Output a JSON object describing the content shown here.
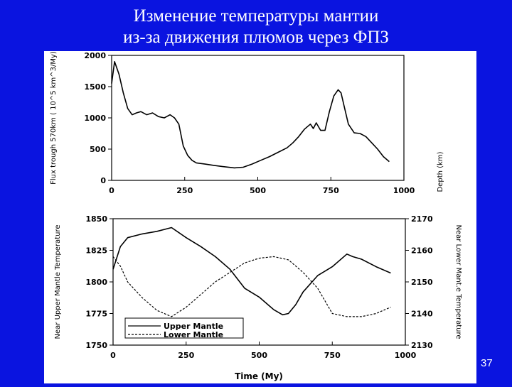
{
  "slide": {
    "title_line1": "Изменение температуры мантии",
    "title_line2": "из-за движения плюмов через ФПЗ",
    "number": "37"
  },
  "colors": {
    "background": "#0a14e0",
    "panel": "#ffffff",
    "ink": "#000000"
  },
  "chart_data": [
    {
      "type": "line",
      "ylabel": "Flux trough 570km ( 10^5 km^3/My)",
      "y2label": "Depth (km)",
      "xlim": [
        0,
        1000
      ],
      "ylim": [
        0,
        2000
      ],
      "xticks": [
        "0",
        "250",
        "500",
        "750",
        "1000"
      ],
      "yticks": [
        "0",
        "500",
        "1000",
        "1500",
        "2000"
      ],
      "series": [
        {
          "x": [
            0,
            10,
            25,
            40,
            55,
            70,
            85,
            100,
            120,
            140,
            160,
            180,
            200,
            215,
            230,
            245,
            260,
            275,
            290,
            320,
            350,
            380,
            420,
            450,
            480,
            510,
            540,
            570,
            600,
            620,
            640,
            660,
            680,
            690,
            700,
            715,
            730,
            745,
            760,
            775,
            785,
            795,
            810,
            830,
            850,
            870,
            890,
            910,
            930,
            950
          ],
          "values": [
            1550,
            1900,
            1700,
            1400,
            1150,
            1050,
            1080,
            1100,
            1050,
            1080,
            1020,
            1000,
            1050,
            1000,
            900,
            550,
            400,
            320,
            280,
            260,
            240,
            220,
            200,
            210,
            260,
            320,
            380,
            450,
            520,
            600,
            700,
            820,
            900,
            830,
            920,
            800,
            800,
            1100,
            1350,
            1450,
            1400,
            1200,
            900,
            760,
            750,
            700,
            600,
            500,
            380,
            300
          ]
        }
      ]
    },
    {
      "type": "line",
      "xlabel": "Time (My)",
      "ylabel": "Near Upper Mantle Temperature",
      "y2label": "Near Lower Mant.e Temperature",
      "xlim": [
        0,
        1000
      ],
      "ylim": [
        1750,
        1850
      ],
      "y2lim": [
        2130,
        2170
      ],
      "xticks": [
        "0",
        "250",
        "500",
        "750",
        "1000"
      ],
      "yticks": [
        "1750",
        "1775",
        "1800",
        "1825",
        "1850"
      ],
      "y2ticks": [
        "2130",
        "2140",
        "2150",
        "2160",
        "2170"
      ],
      "legend_position": "bottom-left",
      "series": [
        {
          "name": "Upper Mantle",
          "axis": "left",
          "style": "solid",
          "x": [
            0,
            25,
            50,
            100,
            150,
            200,
            250,
            300,
            350,
            400,
            450,
            500,
            550,
            580,
            600,
            625,
            650,
            700,
            750,
            800,
            820,
            850,
            900,
            950
          ],
          "values": [
            1810,
            1828,
            1835,
            1838,
            1840,
            1843,
            1835,
            1828,
            1820,
            1810,
            1795,
            1788,
            1778,
            1774,
            1775,
            1782,
            1792,
            1805,
            1812,
            1822,
            1820,
            1818,
            1812,
            1807
          ]
        },
        {
          "name": "Lower Mantle",
          "axis": "right",
          "style": "dashed",
          "x": [
            0,
            25,
            50,
            100,
            150,
            200,
            250,
            300,
            350,
            400,
            450,
            500,
            550,
            600,
            650,
            700,
            750,
            800,
            850,
            900,
            950
          ],
          "values": [
            2158,
            2155,
            2150,
            2145,
            2141,
            2139,
            2142,
            2146,
            2150,
            2153,
            2156,
            2157.5,
            2158,
            2157,
            2153,
            2148,
            2140,
            2139,
            2139,
            2140,
            2142
          ]
        }
      ]
    }
  ]
}
